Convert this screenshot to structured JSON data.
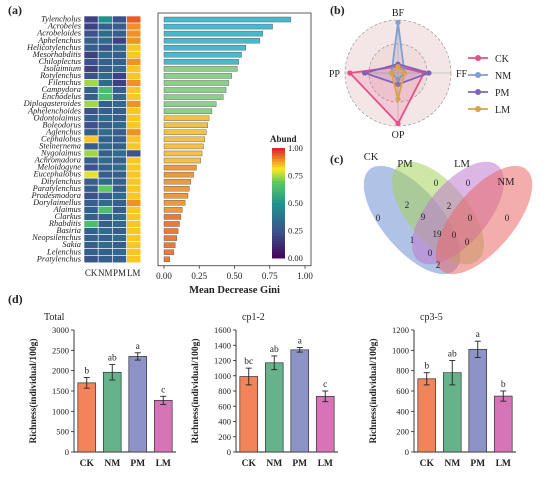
{
  "panels": {
    "a": "(a)",
    "b": "(b)",
    "c": "(c)",
    "d": "(d)"
  },
  "colors": {
    "CK": "#e6508a",
    "NM": "#7f9fd0",
    "PM": "#7d64b8",
    "LM": "#d8a24a",
    "bar_CK": "#f2845c",
    "bar_NM": "#66b28a",
    "bar_PM": "#8d93c6",
    "bar_LM": "#d774b8",
    "venn_CK": "#6f8fd0",
    "venn_PM": "#a6d15c",
    "venn_LM": "#c07ad0",
    "venn_NM": "#ea6a6a"
  },
  "chart_data": [
    {
      "type": "bar",
      "orientation": "horizontal",
      "panel": "a",
      "categories": [
        "Tylencholus",
        "Acrobeles",
        "Acrobeloides",
        "Aphelenchus",
        "Helicotylenchus",
        "Mesorhabditis",
        "Chiloplectus",
        "Isolaimium",
        "Rotylenchus",
        "Filenchus",
        "Campydora",
        "Enchodelus",
        "Diplogasteroides",
        "Aphelenchoides",
        "Odontolaimus",
        "Boleodorus",
        "Aglenchus",
        "Cephalobus",
        "Steinernema",
        "Nygolaimus",
        "Achromadora",
        "Meloidogyne",
        "Eucephalobus",
        "Ditylenchus",
        "Paratylenchus",
        "Prodesmodora",
        "Dorylaimellus",
        "Alaimus",
        "Clarkus",
        "Rhabditis",
        "Basiria",
        "Neopsilenchus",
        "Sakia",
        "Lelenchus",
        "Pratylenchus"
      ],
      "values": [
        0.9,
        0.77,
        0.7,
        0.68,
        0.58,
        0.55,
        0.53,
        0.52,
        0.48,
        0.46,
        0.44,
        0.42,
        0.37,
        0.34,
        0.32,
        0.31,
        0.3,
        0.29,
        0.28,
        0.27,
        0.26,
        0.23,
        0.21,
        0.19,
        0.18,
        0.17,
        0.15,
        0.13,
        0.12,
        0.11,
        0.1,
        0.09,
        0.08,
        0.07,
        0.04
      ],
      "xlabel": "Mean Decrease Gini",
      "xticks": [
        "0.00",
        "0.25",
        "0.50",
        "0.75",
        "1.00"
      ],
      "xlim": [
        0,
        1.0
      ],
      "heatmap_columns": [
        "CK",
        "NM",
        "PM",
        "LM"
      ],
      "heatmap_abundance": [
        [
          0.2,
          0.5,
          0.25,
          0.95
        ],
        [
          0.2,
          0.3,
          0.3,
          0.9
        ],
        [
          0.25,
          0.35,
          0.3,
          0.9
        ],
        [
          0.3,
          0.35,
          0.2,
          0.9
        ],
        [
          0.3,
          0.25,
          0.35,
          0.85
        ],
        [
          0.2,
          0.35,
          0.3,
          0.85
        ],
        [
          0.25,
          0.3,
          0.3,
          0.9
        ],
        [
          0.2,
          0.3,
          0.35,
          0.85
        ],
        [
          0.25,
          0.35,
          0.2,
          0.85
        ],
        [
          0.75,
          0.35,
          0.2,
          0.9
        ],
        [
          0.3,
          0.65,
          0.3,
          0.85
        ],
        [
          0.3,
          0.65,
          0.35,
          0.85
        ],
        [
          0.75,
          0.3,
          0.35,
          0.9
        ],
        [
          0.25,
          0.3,
          0.3,
          0.85
        ],
        [
          0.3,
          0.35,
          0.3,
          0.85
        ],
        [
          0.25,
          0.3,
          0.35,
          0.85
        ],
        [
          0.3,
          0.35,
          0.3,
          0.9
        ],
        [
          0.85,
          0.3,
          0.3,
          0.85
        ],
        [
          0.3,
          0.35,
          0.3,
          0.85
        ],
        [
          0.75,
          0.3,
          0.35,
          0.25
        ],
        [
          0.3,
          0.35,
          0.3,
          0.85
        ],
        [
          0.25,
          0.3,
          0.35,
          0.85
        ],
        [
          0.8,
          0.3,
          0.3,
          0.85
        ],
        [
          0.3,
          0.35,
          0.3,
          0.85
        ],
        [
          0.3,
          0.7,
          0.3,
          0.85
        ],
        [
          0.25,
          0.3,
          0.35,
          0.85
        ],
        [
          0.3,
          0.35,
          0.3,
          0.9
        ],
        [
          0.3,
          0.65,
          0.3,
          0.85
        ],
        [
          0.3,
          0.3,
          0.35,
          0.85
        ],
        [
          0.65,
          0.3,
          0.35,
          0.85
        ],
        [
          0.3,
          0.35,
          0.3,
          0.85
        ],
        [
          0.3,
          0.3,
          0.35,
          0.85
        ],
        [
          0.3,
          0.35,
          0.3,
          0.85
        ],
        [
          0.3,
          0.3,
          0.35,
          0.85
        ],
        [
          0.25,
          0.3,
          0.3,
          0.85
        ]
      ],
      "legend_title": "Abund",
      "legend_ticks": [
        "1.00",
        "0.75",
        "0.50",
        "0.25",
        "0.00"
      ]
    },
    {
      "type": "radar",
      "panel": "b",
      "axes": [
        "BF",
        "FF",
        "OP",
        "PP"
      ],
      "series": [
        {
          "name": "CK",
          "values": [
            0.05,
            0.45,
            0.95,
            0.9
          ]
        },
        {
          "name": "NM",
          "values": [
            0.95,
            0.05,
            0.05,
            0.05
          ]
        },
        {
          "name": "PM",
          "values": [
            0.1,
            0.55,
            0.15,
            0.6
          ]
        },
        {
          "name": "LM",
          "values": [
            0.05,
            0.05,
            0.45,
            0.05
          ]
        }
      ],
      "legend": [
        "CK",
        "NM",
        "PM",
        "LM"
      ]
    },
    {
      "type": "venn",
      "panel": "c",
      "sets": [
        "CK",
        "PM",
        "LM",
        "NM"
      ],
      "region_labels": [
        "0",
        "0",
        "0",
        "0",
        "2",
        "9",
        "2",
        "0",
        "19",
        "1",
        "0",
        "0",
        "0",
        "2"
      ]
    },
    {
      "type": "bar",
      "panel": "d",
      "title": "Total",
      "categories": [
        "CK",
        "NM",
        "PM",
        "LM"
      ],
      "values": [
        1700,
        1960,
        2350,
        1270
      ],
      "errors": [
        130,
        190,
        90,
        100
      ],
      "letters": [
        "b",
        "ab",
        "a",
        "c"
      ],
      "ylabel": "Richness(individual/100g)",
      "ylim": [
        0,
        3000
      ],
      "yticks": [
        "0",
        "500",
        "1000",
        "1500",
        "2000",
        "2500",
        "3000"
      ]
    },
    {
      "type": "bar",
      "panel": "d",
      "title": "cp1-2",
      "categories": [
        "CK",
        "NM",
        "PM",
        "LM"
      ],
      "values": [
        990,
        1170,
        1340,
        730
      ],
      "errors": [
        110,
        90,
        30,
        70
      ],
      "letters": [
        "bc",
        "ab",
        "a",
        "c"
      ],
      "ylabel": "Richness(individual/100g)",
      "ylim": [
        0,
        1600
      ],
      "yticks": [
        "0",
        "200",
        "400",
        "600",
        "800",
        "1000",
        "1200",
        "1400",
        "1600"
      ]
    },
    {
      "type": "bar",
      "panel": "d",
      "title": "cp3-5",
      "categories": [
        "CK",
        "NM",
        "PM",
        "LM"
      ],
      "values": [
        720,
        780,
        1010,
        550
      ],
      "errors": [
        60,
        120,
        80,
        50
      ],
      "letters": [
        "b",
        "ab",
        "a",
        "b"
      ],
      "ylabel": "Richness(individual/100g)",
      "ylim": [
        0,
        1200
      ],
      "yticks": [
        "0",
        "200",
        "400",
        "600",
        "800",
        "1000",
        "1200"
      ]
    }
  ]
}
